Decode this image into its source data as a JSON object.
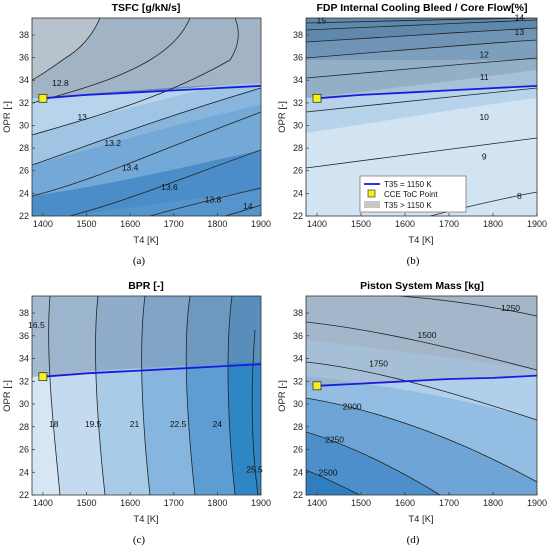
{
  "figure": {
    "panels": [
      {
        "title": "TSFC [g/kN/s]",
        "xlabel": "T4 [K]",
        "ylabel": "OPR [-]",
        "caption": "(a)",
        "xticks": [
          "1400",
          "1500",
          "1600",
          "1700",
          "1800",
          "1900"
        ],
        "yticks": [
          "22",
          "24",
          "26",
          "28",
          "30",
          "32",
          "34",
          "36",
          "38"
        ],
        "contour_labels": [
          "12.8",
          "13",
          "13.2",
          "13.4",
          "13.6",
          "13.8",
          "14"
        ]
      },
      {
        "title": "FDP Internal Cooling Bleed / Core Flow[%]",
        "xlabel": "T4 [K]",
        "ylabel": "OPR [-]",
        "caption": "(b)",
        "xticks": [
          "1400",
          "1500",
          "1600",
          "1700",
          "1800",
          "1900"
        ],
        "yticks": [
          "22",
          "24",
          "26",
          "28",
          "30",
          "32",
          "34",
          "36",
          "38"
        ],
        "contour_labels": [
          "15",
          "14",
          "13",
          "12",
          "11",
          "10",
          "9",
          "8"
        ],
        "legend": [
          "T35 = 1150 K",
          "CCE ToC Point",
          "T35 > 1150 K"
        ]
      },
      {
        "title": "BPR [-]",
        "xlabel": "T4 [K]",
        "ylabel": "OPR [-]",
        "caption": "(c)",
        "xticks": [
          "1400",
          "1500",
          "1600",
          "1700",
          "1800",
          "1900"
        ],
        "yticks": [
          "22",
          "24",
          "26",
          "28",
          "30",
          "32",
          "34",
          "36",
          "38"
        ],
        "contour_labels": [
          "16.5",
          "18",
          "19.5",
          "21",
          "22.5",
          "24",
          "25.5"
        ]
      },
      {
        "title": "Piston System Mass [kg]",
        "xlabel": "T4 [K]",
        "ylabel": "OPR [-]",
        "caption": "(d)",
        "xticks": [
          "1400",
          "1500",
          "1600",
          "1700",
          "1800",
          "1900"
        ],
        "yticks": [
          "22",
          "24",
          "26",
          "28",
          "30",
          "32",
          "34",
          "36",
          "38"
        ],
        "contour_labels": [
          "1250",
          "1500",
          "1750",
          "2000",
          "2250",
          "2500"
        ]
      }
    ]
  },
  "colors": {
    "constraint_line": "#1a1adf",
    "toc_marker": "#f5ef1a",
    "infeasible_region": "#c8c8c8",
    "light_fill": "#d6e6f4",
    "dark_fill": "#2f86c4"
  },
  "chart_data": [
    {
      "type": "contour",
      "title": "TSFC [g/kN/s]",
      "xlabel": "T4 [K]",
      "ylabel": "OPR [-]",
      "xlim": [
        1375,
        1900
      ],
      "ylim": [
        22,
        39.5
      ],
      "levels": [
        12.8,
        13,
        13.2,
        13.4,
        13.6,
        13.8,
        14
      ],
      "level_labels": [
        {
          "value": 12.8,
          "x": 1440,
          "y": 33.5
        },
        {
          "value": 13,
          "x": 1490,
          "y": 30.5
        },
        {
          "value": 13.2,
          "x": 1560,
          "y": 28.2
        },
        {
          "value": 13.4,
          "x": 1600,
          "y": 26.0
        },
        {
          "value": 13.6,
          "x": 1690,
          "y": 24.3
        },
        {
          "value": 13.8,
          "x": 1790,
          "y": 23.2
        },
        {
          "value": 14,
          "x": 1870,
          "y": 22.6
        }
      ],
      "t35_limit_line": {
        "x": [
          1400,
          1500,
          1600,
          1700,
          1800,
          1900
        ],
        "y": [
          32.4,
          32.7,
          32.9,
          33.1,
          33.3,
          33.5
        ]
      },
      "toc_point": {
        "x": 1400,
        "y": 32.4
      }
    },
    {
      "type": "contour",
      "title": "FDP Internal Cooling Bleed / Core Flow[%]",
      "xlabel": "T4 [K]",
      "ylabel": "OPR [-]",
      "xlim": [
        1375,
        1900
      ],
      "ylim": [
        22,
        39.5
      ],
      "levels": [
        8,
        9,
        10,
        11,
        12,
        13,
        14,
        15
      ],
      "level_labels": [
        {
          "value": 15,
          "x": 1410,
          "y": 39.0
        },
        {
          "value": 14,
          "x": 1860,
          "y": 39.3
        },
        {
          "value": 13,
          "x": 1860,
          "y": 38.0
        },
        {
          "value": 12,
          "x": 1780,
          "y": 36.0
        },
        {
          "value": 11,
          "x": 1780,
          "y": 34.0
        },
        {
          "value": 10,
          "x": 1780,
          "y": 30.5
        },
        {
          "value": 9,
          "x": 1780,
          "y": 27.0
        },
        {
          "value": 8,
          "x": 1860,
          "y": 23.5
        }
      ],
      "t35_limit_line": {
        "x": [
          1400,
          1500,
          1600,
          1700,
          1800,
          1900
        ],
        "y": [
          32.4,
          32.7,
          32.9,
          33.1,
          33.3,
          33.5
        ]
      },
      "toc_point": {
        "x": 1400,
        "y": 32.4
      }
    },
    {
      "type": "contour",
      "title": "BPR [-]",
      "xlabel": "T4 [K]",
      "ylabel": "OPR [-]",
      "xlim": [
        1375,
        1900
      ],
      "ylim": [
        22,
        39.5
      ],
      "levels": [
        16.5,
        18,
        19.5,
        21,
        22.5,
        24,
        25.5
      ],
      "level_labels": [
        {
          "value": 16.5,
          "x": 1385,
          "y": 36.7
        },
        {
          "value": 18,
          "x": 1425,
          "y": 28.0
        },
        {
          "value": 19.5,
          "x": 1515,
          "y": 28.0
        },
        {
          "value": 21,
          "x": 1610,
          "y": 28.0
        },
        {
          "value": 22.5,
          "x": 1710,
          "y": 28.0
        },
        {
          "value": 24,
          "x": 1800,
          "y": 28.0
        },
        {
          "value": 25.5,
          "x": 1885,
          "y": 24.0
        }
      ],
      "t35_limit_line": {
        "x": [
          1400,
          1500,
          1600,
          1700,
          1800,
          1900
        ],
        "y": [
          32.4,
          32.7,
          32.9,
          33.1,
          33.3,
          33.5
        ]
      },
      "toc_point": {
        "x": 1400,
        "y": 32.4
      }
    },
    {
      "type": "contour",
      "title": "Piston System Mass [kg]",
      "xlabel": "T4 [K]",
      "ylabel": "OPR [-]",
      "xlim": [
        1375,
        1900
      ],
      "ylim": [
        22,
        39.5
      ],
      "levels": [
        1250,
        1500,
        1750,
        2000,
        2250,
        2500
      ],
      "level_labels": [
        {
          "value": 1250,
          "x": 1840,
          "y": 38.2
        },
        {
          "value": 1500,
          "x": 1650,
          "y": 35.8
        },
        {
          "value": 1750,
          "x": 1540,
          "y": 33.3
        },
        {
          "value": 2000,
          "x": 1480,
          "y": 29.5
        },
        {
          "value": 2250,
          "x": 1440,
          "y": 26.6
        },
        {
          "value": 2500,
          "x": 1425,
          "y": 23.7
        }
      ],
      "t35_limit_line": {
        "x": [
          1400,
          1500,
          1600,
          1700,
          1800,
          1900
        ],
        "y": [
          31.6,
          31.8,
          32.0,
          32.2,
          32.3,
          32.5
        ]
      },
      "toc_point": {
        "x": 1400,
        "y": 31.6
      }
    }
  ]
}
